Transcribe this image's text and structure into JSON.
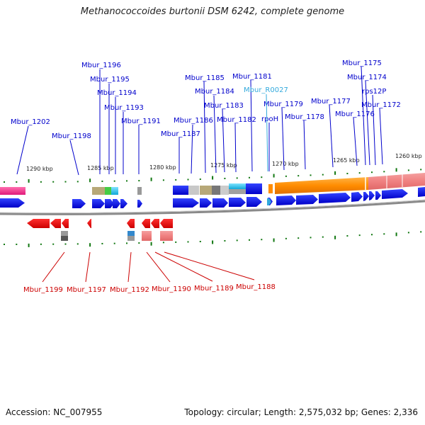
{
  "title": "Methanococcoides burtonii DSM 6242, complete genome",
  "footer": {
    "accession": "Accession: NC_007955",
    "summary": "Topology: circular; Length: 2,575,032 bp; Genes: 2,336"
  },
  "colors": {
    "forward_label": "#0000cc",
    "reverse_label": "#cc0000",
    "rna_label": "#33aadd",
    "forward_gene": "#0a1ee6",
    "reverse_gene": "#e81010",
    "tick": "#117711",
    "backbone": "#8a8a8a"
  },
  "scale_labels": [
    "1290 kbp",
    "1285 kbp",
    "1280 kbp",
    "1275 kbp",
    "1270 kbp",
    "1265 kbp",
    "1260 kbp"
  ],
  "forward_genes": [
    "Mbur_1202",
    "Mbur_1198",
    "Mbur_1196",
    "Mbur_1195",
    "Mbur_1194",
    "Mbur_1193",
    "Mbur_1191",
    "Mbur_1187",
    "Mbur_1186",
    "Mbur_1185",
    "Mbur_1184",
    "Mbur_1183",
    "Mbur_1182",
    "Mbur_1181",
    "rpoH",
    "Mbur_1179",
    "Mbur_1178",
    "Mbur_1177",
    "Mbur_1176",
    "Mbur_1175",
    "Mbur_1174",
    "rps12P",
    "Mbur_1172"
  ],
  "rna_genes": [
    "Mbur_R0027"
  ],
  "reverse_genes": [
    "Mbur_1199",
    "Mbur_1197",
    "Mbur_1192",
    "Mbur_1190",
    "Mbur_1189",
    "Mbur_1188"
  ]
}
